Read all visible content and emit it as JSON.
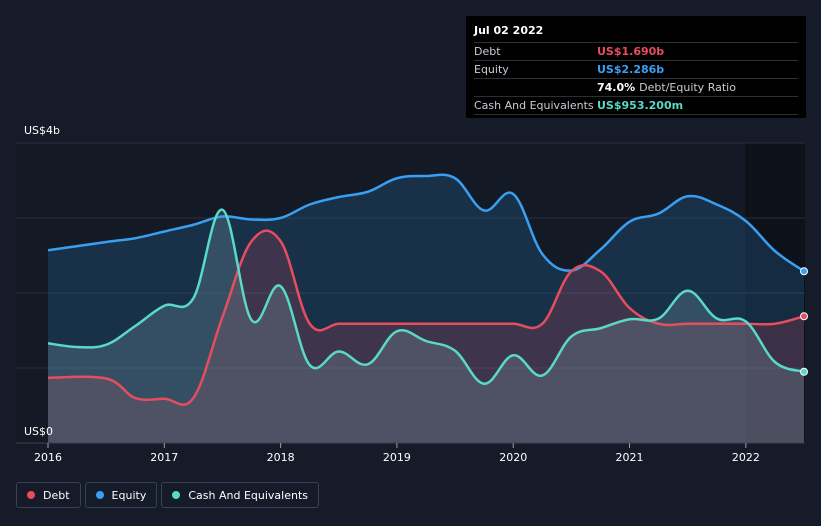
{
  "tooltip": {
    "date": "Jul 02 2022",
    "rows": [
      {
        "label": "Debt",
        "value": "US$1.690b",
        "color": "#e64d5e"
      },
      {
        "label": "Equity",
        "value": "US$2.286b",
        "color": "#3a9ff0"
      },
      {
        "label": "",
        "value": "74.0%",
        "sub": "Debt/Equity Ratio",
        "color": "#ffffff"
      },
      {
        "label": "Cash And Equivalents",
        "value": "US$953.200m",
        "color": "#59d9c8"
      }
    ]
  },
  "legend": [
    {
      "label": "Debt",
      "color": "#e64d5e"
    },
    {
      "label": "Equity",
      "color": "#3a9ff0"
    },
    {
      "label": "Cash And Equivalents",
      "color": "#59d9c8"
    }
  ],
  "chart_data": {
    "type": "area",
    "y_top_label": "US$4b",
    "y_bottom_label": "US$0",
    "ylim": [
      0,
      4
    ],
    "xlim": [
      2016,
      2022.5
    ],
    "x_ticks": [
      "2016",
      "2017",
      "2018",
      "2019",
      "2020",
      "2021",
      "2022"
    ],
    "series": [
      {
        "name": "Equity",
        "color": "#3a9ff0",
        "x": [
          2016.0,
          2016.5,
          2016.75,
          2017.0,
          2017.25,
          2017.5,
          2017.75,
          2018.0,
          2018.25,
          2018.5,
          2018.75,
          2019.0,
          2019.25,
          2019.5,
          2019.75,
          2020.0,
          2020.25,
          2020.5,
          2020.75,
          2021.0,
          2021.25,
          2021.5,
          2021.75,
          2022.0,
          2022.25,
          2022.5
        ],
        "y": [
          2.57,
          2.68,
          2.73,
          2.82,
          2.91,
          3.02,
          2.98,
          3.0,
          3.18,
          3.28,
          3.35,
          3.53,
          3.56,
          3.53,
          3.1,
          3.32,
          2.52,
          2.3,
          2.58,
          2.95,
          3.06,
          3.29,
          3.18,
          2.96,
          2.56,
          2.29
        ]
      },
      {
        "name": "Debt",
        "color": "#e64d5e",
        "x": [
          2016.0,
          2016.5,
          2016.75,
          2017.0,
          2017.25,
          2017.5,
          2017.75,
          2018.0,
          2018.25,
          2018.5,
          2018.75,
          2019.0,
          2019.25,
          2019.5,
          2019.75,
          2020.0,
          2020.25,
          2020.5,
          2020.75,
          2021.0,
          2021.25,
          2021.5,
          2021.75,
          2022.0,
          2022.25,
          2022.5
        ],
        "y": [
          0.87,
          0.86,
          0.6,
          0.59,
          0.6,
          1.68,
          2.69,
          2.69,
          1.59,
          1.59,
          1.59,
          1.59,
          1.59,
          1.59,
          1.59,
          1.59,
          1.59,
          2.29,
          2.29,
          1.8,
          1.59,
          1.59,
          1.59,
          1.59,
          1.59,
          1.69
        ]
      },
      {
        "name": "Cash And Equivalents",
        "color": "#59d9c8",
        "x": [
          2016.0,
          2016.25,
          2016.5,
          2016.75,
          2017.0,
          2017.25,
          2017.5,
          2017.75,
          2018.0,
          2018.25,
          2018.5,
          2018.75,
          2019.0,
          2019.25,
          2019.5,
          2019.75,
          2020.0,
          2020.25,
          2020.5,
          2020.75,
          2021.0,
          2021.25,
          2021.5,
          2021.75,
          2022.0,
          2022.25,
          2022.5
        ],
        "y": [
          1.33,
          1.28,
          1.31,
          1.56,
          1.83,
          1.93,
          3.11,
          1.64,
          2.09,
          1.04,
          1.22,
          1.05,
          1.49,
          1.36,
          1.23,
          0.79,
          1.17,
          0.9,
          1.42,
          1.53,
          1.65,
          1.66,
          2.03,
          1.66,
          1.62,
          1.08,
          0.95
        ]
      }
    ]
  }
}
